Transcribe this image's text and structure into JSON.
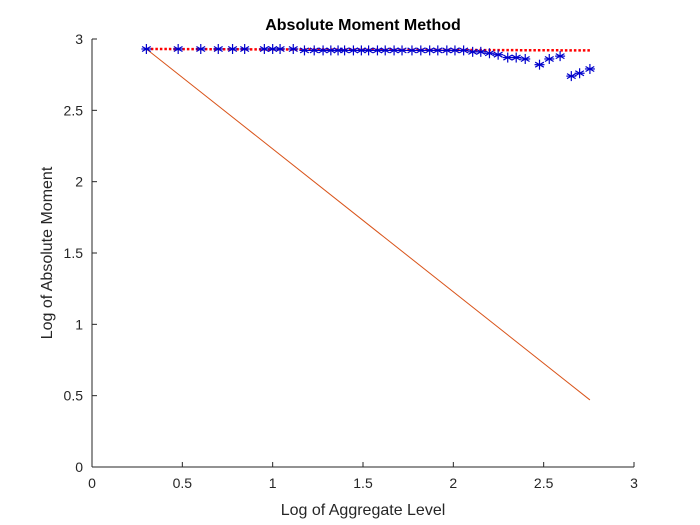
{
  "chart_data": {
    "type": "scatter",
    "title": "Absolute Moment Method",
    "xlabel": "Log of Aggregate Level",
    "ylabel": "Log of Absolute Moment",
    "xlim": [
      0,
      3
    ],
    "ylim": [
      0,
      3
    ],
    "grid": false,
    "legend": "none",
    "xticks": [
      {
        "value": 0,
        "label": "0"
      },
      {
        "value": 0.5,
        "label": "0.5"
      },
      {
        "value": 1,
        "label": "1"
      },
      {
        "value": 1.5,
        "label": "1.5"
      },
      {
        "value": 2,
        "label": "2"
      },
      {
        "value": 2.5,
        "label": "2.5"
      },
      {
        "value": 3,
        "label": "3"
      }
    ],
    "yticks": [
      {
        "value": 0,
        "label": "0"
      },
      {
        "value": 0.5,
        "label": "0.5"
      },
      {
        "value": 1,
        "label": "1"
      },
      {
        "value": 1.5,
        "label": "1.5"
      },
      {
        "value": 2,
        "label": "2"
      },
      {
        "value": 2.5,
        "label": "2.5"
      },
      {
        "value": 3,
        "label": "3"
      }
    ],
    "series": [
      {
        "kind": "markers",
        "marker": "asterisk",
        "color": "#0000cc",
        "x": [
          0.301,
          0.477,
          0.602,
          0.699,
          0.778,
          0.845,
          0.954,
          1.0,
          1.041,
          1.114,
          1.176,
          1.23,
          1.279,
          1.322,
          1.362,
          1.398,
          1.447,
          1.491,
          1.531,
          1.58,
          1.623,
          1.672,
          1.716,
          1.771,
          1.82,
          1.869,
          1.914,
          1.964,
          2.009,
          2.057,
          2.107,
          2.152,
          2.2,
          2.248,
          2.301,
          2.348,
          2.398,
          2.477,
          2.531,
          2.591,
          2.653,
          2.699,
          2.756
        ],
        "y": [
          2.93,
          2.93,
          2.93,
          2.93,
          2.93,
          2.93,
          2.93,
          2.93,
          2.93,
          2.93,
          2.92,
          2.92,
          2.92,
          2.92,
          2.92,
          2.92,
          2.92,
          2.92,
          2.92,
          2.92,
          2.92,
          2.92,
          2.92,
          2.92,
          2.92,
          2.92,
          2.92,
          2.92,
          2.92,
          2.92,
          2.91,
          2.91,
          2.9,
          2.89,
          2.87,
          2.87,
          2.86,
          2.82,
          2.86,
          2.88,
          2.74,
          2.76,
          2.79
        ]
      },
      {
        "kind": "line",
        "style": "dotted",
        "color": "#ff0000",
        "x": [
          0.301,
          2.756
        ],
        "y": [
          2.93,
          2.92
        ]
      },
      {
        "kind": "line",
        "style": "solid",
        "color": "#d95319",
        "x": [
          0.301,
          2.756
        ],
        "y": [
          2.93,
          0.47
        ]
      }
    ]
  }
}
